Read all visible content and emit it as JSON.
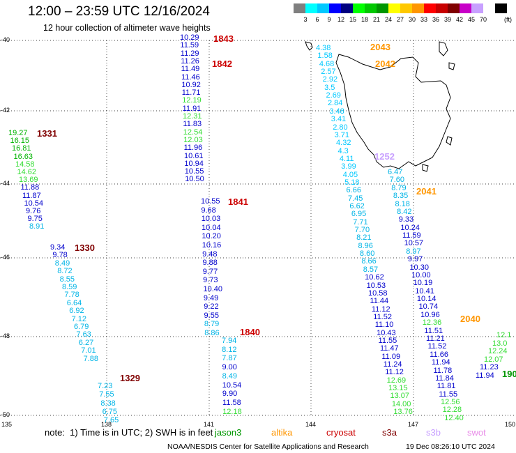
{
  "header": {
    "title": "12:00 – 23:59 UTC 12/16/2024",
    "subtitle": "12 hour collection of altimeter wave heights"
  },
  "colorbar": {
    "colors": [
      "#7f7f7f",
      "#00ffff",
      "#00c8ff",
      "#0000ff",
      "#000080",
      "#00ff00",
      "#00c800",
      "#009600",
      "#ffff00",
      "#ffc800",
      "#ff9600",
      "#ff0000",
      "#c80000",
      "#800000",
      "#c800c8",
      "#c8a0ff",
      "#ffffff",
      "#000000"
    ],
    "labels": [
      "3",
      "6",
      "9",
      "12",
      "15",
      "18",
      "21",
      "24",
      "27",
      "30",
      "33",
      "36",
      "39",
      "42",
      "45",
      "70"
    ],
    "unit": "(ft)"
  },
  "axes": {
    "lat_labels": [
      "-40",
      "-42",
      "-44",
      "-46",
      "-48",
      "-50"
    ],
    "lon_labels": [
      "135",
      "138",
      "141",
      "144",
      "147",
      "150"
    ]
  },
  "tracks": [
    {
      "time": "1843",
      "color": "#cc0000",
      "values": [
        "10.29",
        "11.59",
        "11.29",
        "11.26",
        "11.49",
        "11.46",
        "10.92",
        "11.71",
        "12.19",
        "11.91",
        "12.31",
        "11.83",
        "12.54",
        "12.03",
        "11.96",
        "10.61",
        "10.94",
        "10.55",
        "10.50"
      ]
    },
    {
      "time": "1842",
      "color": "#cc0000",
      "values": []
    },
    {
      "time": "1841",
      "color": "#cc0000",
      "values": [
        "10.55",
        "9.68",
        "10.03",
        "10.04",
        "10.20",
        "10.16",
        "9.48",
        "9.88",
        "9.77",
        "9.73",
        "10.40",
        "9.49",
        "9.22",
        "9.55",
        "8.79",
        "8.86"
      ]
    },
    {
      "time": "1840",
      "color": "#cc0000",
      "values": [
        "7.94",
        "8.12",
        "7.87",
        "9.00",
        "8.49",
        "10.54",
        "9.90",
        "11.58",
        "12.18"
      ]
    },
    {
      "time": "1331",
      "color": "#800000",
      "values": [
        "19.27",
        "16.15",
        "16.81",
        "16.63",
        "14.58",
        "14.62",
        "13.69",
        "11.88",
        "11.87",
        "10.54",
        "9.76",
        "9.75",
        "8.91"
      ]
    },
    {
      "time": "1330",
      "color": "#800000",
      "values": [
        "9.34",
        "9.78",
        "8.49",
        "8.72",
        "8.55",
        "8.59",
        "7.78",
        "6.64",
        "6.92",
        "7.12",
        "6.79",
        "7.63",
        "6.27",
        "7.01",
        "7.88"
      ]
    },
    {
      "time": "1329",
      "color": "#800000",
      "values": [
        "7.23",
        "7.55",
        "8.38",
        "6.75",
        "7.65"
      ]
    },
    {
      "time": "2043",
      "color": "#ff9600",
      "values": [
        "4.38",
        "1.58",
        "4.68",
        "2.57",
        "2.92",
        "3.5",
        "2.69",
        "2.84",
        "3.48",
        "3.41",
        "2.80",
        "3.71",
        "4.32",
        "4.3",
        "4.11",
        "3.99",
        "4.05",
        "5.18",
        "6.66",
        "7.45",
        "6.62",
        "6.95",
        "7.71",
        "7.70",
        "8.21",
        "8.96",
        "8.60",
        "8.66",
        "8.57",
        "10.62",
        "10.53",
        "10.58",
        "11.44",
        "11.12",
        "11.52",
        "11.10",
        "10.43",
        "11.55",
        "11.47",
        "11.09",
        "11.24",
        "11.12",
        "12.69",
        "13.15",
        "13.07",
        "14.00",
        "13.76"
      ]
    },
    {
      "time": "2042",
      "color": "#ff9600",
      "values": []
    },
    {
      "time": "1252",
      "color": "#c8a0ff",
      "values": []
    },
    {
      "time": "2041",
      "color": "#ff9600",
      "values": [
        "6.47",
        "7.60",
        "8.79",
        "8.35",
        "8.18",
        "8.42",
        "9.33",
        "10.24",
        "11.59",
        "10.57",
        "8.97",
        "9.97",
        "10.30",
        "10.00",
        "10.19",
        "10.41",
        "10.14",
        "10.74",
        "10.96",
        "12.36",
        "11.51",
        "11.21",
        "11.52",
        "11.66",
        "11.94",
        "11.78",
        "11.84",
        "11.81",
        "11.55",
        "12.56",
        "12.28",
        "12.40"
      ]
    },
    {
      "time": "2040",
      "color": "#ff9600",
      "values": [
        "12.1",
        "13.0",
        "12.24",
        "12.07",
        "11.23",
        "11.94"
      ]
    },
    {
      "time": "190",
      "color": "#009600",
      "values": []
    }
  ],
  "footer": {
    "note": "note:  1) Time is in UTC; 2) SWH is in feet",
    "legend": [
      {
        "name": "jason3",
        "color": "#009600"
      },
      {
        "name": "altika",
        "color": "#ff9600"
      },
      {
        "name": "cryosat",
        "color": "#cc0000"
      },
      {
        "name": "s3a",
        "color": "#800000"
      },
      {
        "name": "s3b",
        "color": "#c8a0ff"
      },
      {
        "name": "swot",
        "color": "#e88ce8"
      }
    ],
    "credit": "NOAA/NESDIS Center for Satellite Applications and Research",
    "timestamp": "19 Dec 08:26:10 UTC 2024"
  }
}
